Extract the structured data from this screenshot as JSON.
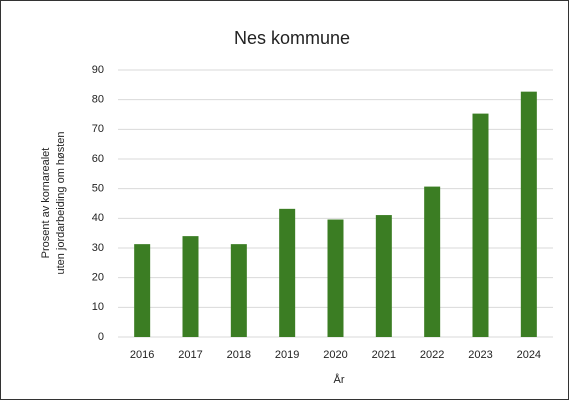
{
  "chart_data": {
    "type": "bar",
    "title": "Nes kommune",
    "ylabel": [
      "Prosent av kornarealet",
      "uten jordarbeiding om høsten"
    ],
    "xlabel": "År",
    "categories": [
      "2016",
      "2017",
      "2018",
      "2019",
      "2020",
      "2021",
      "2022",
      "2023",
      "2024"
    ],
    "values": [
      31.3,
      34,
      31.3,
      43.2,
      39.6,
      41.1,
      50.7,
      75.3,
      82.7
    ],
    "color": "#3b7d23",
    "ylim": [
      0,
      90
    ],
    "yticks": [
      0,
      10,
      20,
      30,
      40,
      50,
      60,
      70,
      80,
      90
    ],
    "grid": true
  }
}
